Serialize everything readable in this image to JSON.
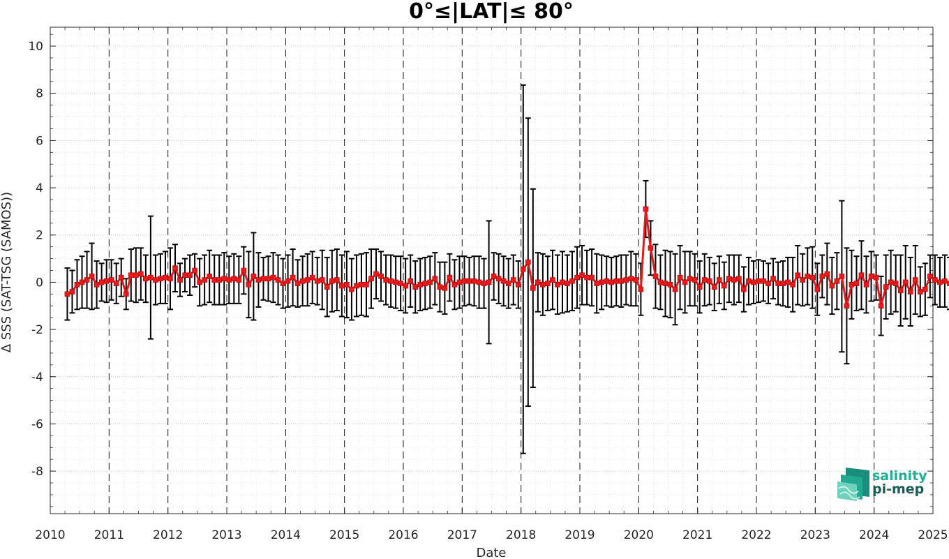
{
  "chart_data": {
    "type": "line",
    "title": "0°≤|LAT|≤ 80°",
    "xlabel": "Date",
    "ylabel": "Δ SSS (SAT-TSG (SAMOS))",
    "xlim": [
      2010,
      2025
    ],
    "ylim": [
      -9.8,
      10.8
    ],
    "x_ticks": [
      2010,
      2011,
      2012,
      2013,
      2014,
      2015,
      2016,
      2017,
      2018,
      2019,
      2020,
      2021,
      2022,
      2023,
      2024,
      2025
    ],
    "x_tick_labels": [
      "2010",
      "2011",
      "2012",
      "2013",
      "2014",
      "2015",
      "2016",
      "2017",
      "2018",
      "2019",
      "2020",
      "2021",
      "2022",
      "2023",
      "2024",
      "2025"
    ],
    "y_ticks": [
      -8,
      -6,
      -4,
      -2,
      0,
      2,
      4,
      6,
      8,
      10
    ],
    "y_tick_labels": [
      "-8",
      "-6",
      "-4",
      "-2",
      "0",
      "2",
      "4",
      "6",
      "8",
      "10"
    ],
    "grid": "dotted major and minor",
    "year_lines": "dashed vertical at each year",
    "series": [
      {
        "color": "#e41a1c",
        "error_bar_color": "#000000",
        "start_year": 2010.29,
        "step_years": 0.0833,
        "values": [
          -0.5,
          -0.4,
          -0.1,
          0.0,
          0.1,
          0.25,
          -0.1,
          0.0,
          0.05,
          0.1,
          -0.05,
          0.2,
          -0.5,
          0.3,
          0.3,
          0.35,
          0.15,
          0.2,
          0.1,
          0.15,
          0.2,
          0.15,
          0.6,
          0.1,
          0.3,
          0.3,
          0.5,
          0.0,
          0.1,
          0.25,
          0.1,
          0.1,
          0.15,
          0.1,
          0.15,
          0.1,
          0.5,
          -0.1,
          0.25,
          0.1,
          0.15,
          0.15,
          0.2,
          0.1,
          -0.05,
          0.05,
          0.2,
          -0.05,
          0.05,
          0.1,
          0.2,
          0.05,
          0.1,
          -0.2,
          0.05,
          0.1,
          -0.15,
          -0.1,
          -0.3,
          -0.15,
          -0.1,
          -0.1,
          0.15,
          0.35,
          0.25,
          0.1,
          0.05,
          0.0,
          -0.05,
          -0.15,
          0.05,
          -0.2,
          -0.1,
          -0.05,
          0.0,
          0.15,
          -0.2,
          -0.25,
          0.2,
          -0.1,
          0.0,
          0.05,
          0.05,
          0.05,
          0.0,
          -0.05,
          0.0,
          0.25,
          0.15,
          0.05,
          -0.05,
          0.1,
          -0.1,
          0.55,
          0.85,
          -0.25,
          0.0,
          -0.1,
          -0.05,
          0.1,
          -0.1,
          0.0,
          -0.05,
          0.05,
          0.2,
          0.3,
          0.2,
          0.2,
          -0.05,
          0.0,
          0.05,
          0.0,
          0.05,
          0.05,
          0.1,
          0.15,
          0.1,
          -0.3,
          3.1,
          1.45,
          0.25,
          0.0,
          -0.05,
          -0.1,
          -0.3,
          0.2,
          0.0,
          0.15,
          0.1,
          -0.2,
          0.1,
          0.05,
          -0.2,
          0.1,
          -0.15,
          0.15,
          0.1,
          0.15,
          -0.3,
          0.05,
          0.0,
          0.05,
          0.05,
          -0.05,
          0.15,
          -0.05,
          -0.05,
          0.0,
          -0.1,
          0.3,
          0.1,
          0.25,
          0.2,
          -0.3,
          0.25,
          0.35,
          -0.15,
          0.05,
          0.25,
          -1.0,
          -0.1,
          -0.05,
          0.3,
          -0.1,
          0.25,
          0.2,
          -1.0,
          -0.2,
          0.0,
          -0.05,
          -0.35,
          0.0,
          -0.4,
          0.1,
          -0.4,
          -0.3,
          0.25,
          0.1,
          0.0,
          0.05,
          -0.05,
          -0.1,
          -0.1,
          -0.15,
          -0.15,
          -0.1,
          -0.15,
          -0.2
        ],
        "err": [
          1.1,
          0.9,
          1.05,
          1.1,
          1.2,
          1.4,
          1.0,
          0.8,
          0.9,
          0.85,
          0.85,
          0.8,
          0.65,
          1.1,
          1.15,
          1.1,
          1.0,
          2.6,
          1.05,
          1.05,
          1.1,
          1.3,
          1.0,
          0.7,
          0.7,
          0.85,
          0.7,
          1.0,
          1.05,
          1.1,
          1.05,
          1.05,
          1.1,
          1.0,
          1.05,
          1.0,
          1.0,
          1.4,
          1.85,
          1.15,
          0.9,
          0.95,
          1.05,
          1.05,
          1.05,
          1.1,
          1.2,
          1.0,
          1.05,
          1.1,
          1.1,
          1.0,
          1.25,
          1.25,
          1.3,
          1.3,
          1.3,
          1.4,
          1.3,
          1.3,
          1.3,
          1.35,
          1.25,
          1.05,
          1.05,
          1.05,
          1.1,
          1.1,
          1.15,
          1.15,
          1.1,
          1.1,
          1.1,
          1.1,
          1.1,
          1.1,
          1.05,
          1.1,
          1.0,
          1.05,
          1.1,
          1.05,
          1.0,
          1.05,
          1.1,
          1.05,
          2.6,
          1.0,
          1.05,
          1.05,
          1.05,
          1.05,
          1.0,
          7.8,
          6.1,
          4.2,
          1.25,
          1.3,
          1.15,
          1.25,
          1.25,
          1.3,
          1.2,
          1.25,
          1.3,
          1.25,
          1.15,
          1.2,
          1.25,
          1.15,
          1.05,
          1.05,
          1.05,
          1.1,
          1.05,
          1.15,
          1.1,
          1.1,
          1.2,
          1.15,
          1.35,
          1.15,
          1.4,
          1.4,
          1.5,
          1.35,
          1.3,
          1.15,
          1.1,
          1.1,
          1.1,
          1.0,
          1.0,
          1.0,
          1.0,
          1.0,
          1.05,
          1.0,
          0.95,
          1.0,
          0.9,
          0.9,
          0.85,
          0.85,
          0.85,
          0.9,
          0.95,
          1.05,
          1.15,
          1.25,
          1.1,
          1.2,
          1.3,
          1.1,
          0.9,
          1.3,
          1.2,
          1.2,
          3.2,
          2.45,
          1.45,
          1.15,
          1.45,
          1.2,
          1.05,
          0.95,
          1.25,
          1.35,
          1.35,
          1.2,
          1.5,
          1.55,
          1.45,
          1.45,
          1.05,
          1.1,
          0.9,
          1.05,
          1.05,
          1.1,
          1.1,
          1.15,
          1.15,
          1.2,
          1.25,
          1.3,
          1.3,
          1.3
        ]
      }
    ]
  },
  "logo": {
    "line1": "salinity",
    "line2": "pi-mep",
    "color1": "#1fae94",
    "color2": "#1b5e57"
  }
}
